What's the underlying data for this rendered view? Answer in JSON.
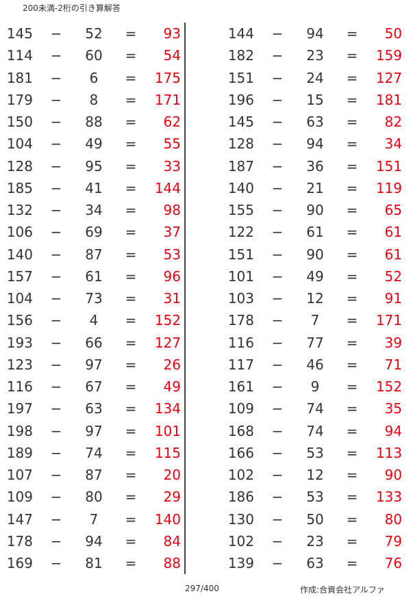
{
  "title": "200未満-2桁の引き算解答",
  "operator": "−",
  "equals": "=",
  "answer_color": "#e60012",
  "left": [
    [
      "145",
      "52",
      "93"
    ],
    [
      "114",
      "60",
      "54"
    ],
    [
      "181",
      "6",
      "175"
    ],
    [
      "179",
      "8",
      "171"
    ],
    [
      "150",
      "88",
      "62"
    ],
    [
      "104",
      "49",
      "55"
    ],
    [
      "128",
      "95",
      "33"
    ],
    [
      "185",
      "41",
      "144"
    ],
    [
      "132",
      "34",
      "98"
    ],
    [
      "106",
      "69",
      "37"
    ],
    [
      "140",
      "87",
      "53"
    ],
    [
      "157",
      "61",
      "96"
    ],
    [
      "104",
      "73",
      "31"
    ],
    [
      "156",
      "4",
      "152"
    ],
    [
      "193",
      "66",
      "127"
    ],
    [
      "123",
      "97",
      "26"
    ],
    [
      "116",
      "67",
      "49"
    ],
    [
      "197",
      "63",
      "134"
    ],
    [
      "198",
      "97",
      "101"
    ],
    [
      "189",
      "74",
      "115"
    ],
    [
      "107",
      "87",
      "20"
    ],
    [
      "109",
      "80",
      "29"
    ],
    [
      "147",
      "7",
      "140"
    ],
    [
      "178",
      "94",
      "84"
    ],
    [
      "169",
      "81",
      "88"
    ]
  ],
  "right": [
    [
      "144",
      "94",
      "50"
    ],
    [
      "182",
      "23",
      "159"
    ],
    [
      "151",
      "24",
      "127"
    ],
    [
      "196",
      "15",
      "181"
    ],
    [
      "145",
      "63",
      "82"
    ],
    [
      "128",
      "94",
      "34"
    ],
    [
      "187",
      "36",
      "151"
    ],
    [
      "140",
      "21",
      "119"
    ],
    [
      "155",
      "90",
      "65"
    ],
    [
      "122",
      "61",
      "61"
    ],
    [
      "151",
      "90",
      "61"
    ],
    [
      "101",
      "49",
      "52"
    ],
    [
      "103",
      "12",
      "91"
    ],
    [
      "178",
      "7",
      "171"
    ],
    [
      "116",
      "77",
      "39"
    ],
    [
      "117",
      "46",
      "71"
    ],
    [
      "161",
      "9",
      "152"
    ],
    [
      "109",
      "74",
      "35"
    ],
    [
      "168",
      "74",
      "94"
    ],
    [
      "166",
      "53",
      "113"
    ],
    [
      "102",
      "12",
      "90"
    ],
    [
      "186",
      "53",
      "133"
    ],
    [
      "130",
      "50",
      "80"
    ],
    [
      "102",
      "23",
      "79"
    ],
    [
      "139",
      "63",
      "76"
    ]
  ],
  "footer": {
    "page": "297/400",
    "credit": "作成:合資会社アルファ"
  }
}
